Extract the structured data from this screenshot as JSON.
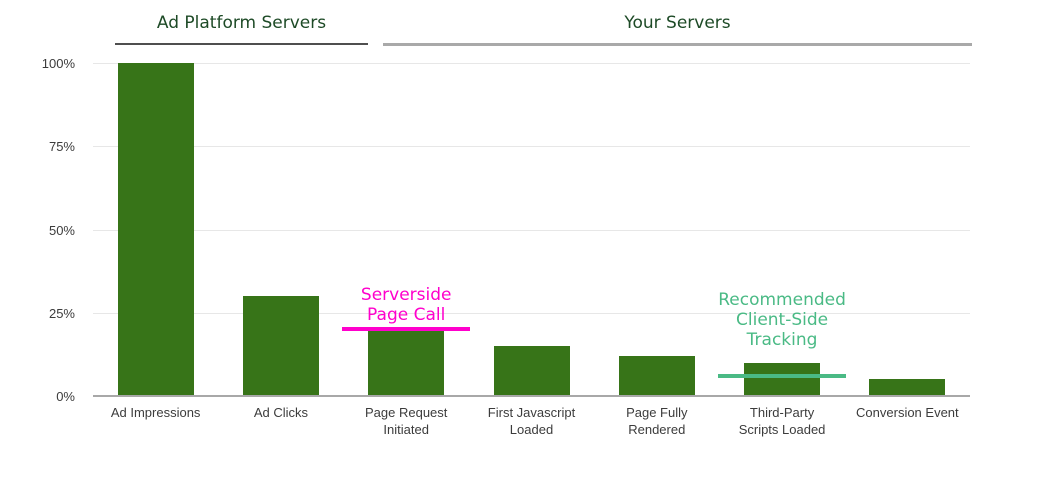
{
  "chart_data": {
    "type": "bar",
    "title": "",
    "xlabel": "",
    "ylabel": "",
    "categories": [
      "Ad Impressions",
      "Ad Clicks",
      "Page Request Initiated",
      "First Javascript Loaded",
      "Page Fully Rendered",
      "Third-Party Scripts Loaded",
      "Conversion Event"
    ],
    "category_label_lines": [
      [
        "Ad Impressions"
      ],
      [
        "Ad Clicks"
      ],
      [
        "Page Request",
        "Initiated"
      ],
      [
        "First Javascript",
        "Loaded"
      ],
      [
        "Page Fully",
        "Rendered"
      ],
      [
        "Third-Party",
        "Scripts Loaded"
      ],
      [
        "Conversion Event"
      ]
    ],
    "values": [
      100,
      30,
      20,
      15,
      12,
      10,
      5
    ],
    "value_unit": "%",
    "ylim": [
      0,
      100
    ],
    "ytick_values": [
      0,
      25,
      50,
      75,
      100
    ],
    "ytick_labels": [
      "0%",
      "25%",
      "50%",
      "75%",
      "100%"
    ],
    "grid": "horizontal",
    "legend": "none",
    "bar_color": "#377418",
    "axis_text_color": "#3c3c3c",
    "header_color": "#1d4a26",
    "groups": [
      {
        "label": "Ad Platform Servers",
        "span_categories": [
          "Ad Impressions",
          "Ad Clicks"
        ],
        "underline_color": "#4f4f4f"
      },
      {
        "label": "Your Servers",
        "span_categories": [
          "Page Request Initiated",
          "First Javascript Loaded",
          "Page Fully Rendered",
          "Third-Party Scripts Loaded",
          "Conversion Event"
        ],
        "underline_color": "#a9a9a9"
      }
    ],
    "annotations": [
      {
        "text": "Serverside\nPage Call",
        "color": "#ff00cc",
        "line_value": 20,
        "target_category": "Page Request Initiated"
      },
      {
        "text": "Recommended\nClient-Side\nTracking",
        "color": "#4aba85",
        "line_value": 6,
        "target_category": "Third-Party Scripts Loaded"
      }
    ]
  }
}
